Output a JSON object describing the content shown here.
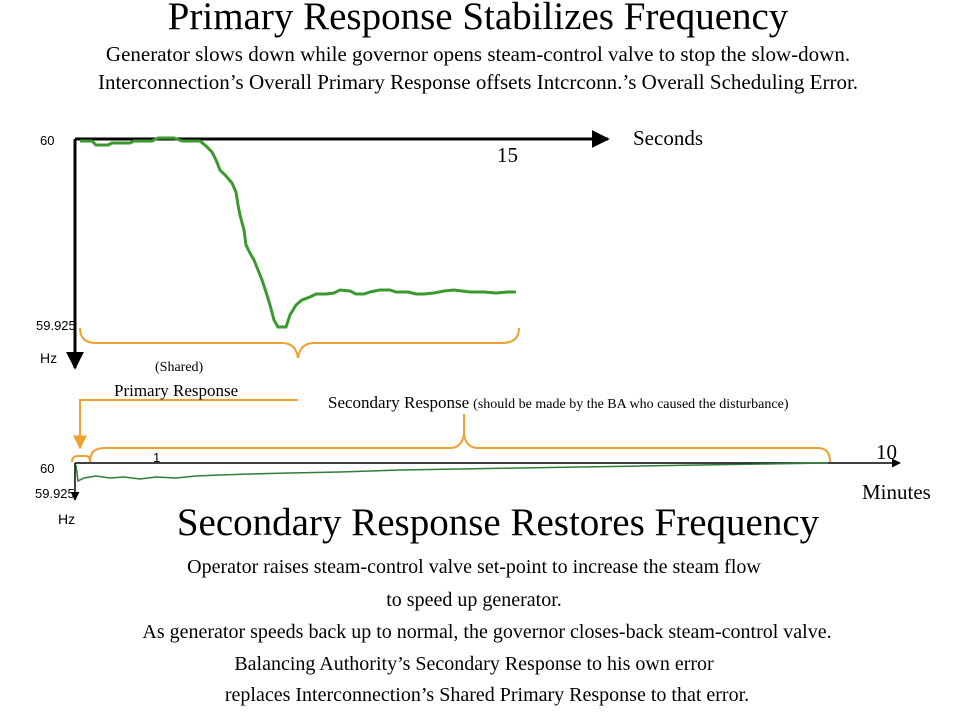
{
  "title_top": "Primary Response Stabilizes Frequency",
  "subtitle_top": [
    "Generator slows down while governor opens steam-control valve to stop the slow-down.",
    "Interconnection’s Overall Primary Response offsets Intcrconn.’s Overall Scheduling Error."
  ],
  "top_chart": {
    "y_tick_top": "60",
    "y_tick_bottom": "59.925",
    "y_unit": "Hz",
    "x_unit": "Seconds",
    "x_value_label": "15",
    "brace_label_shared": "(Shared)",
    "brace_label_primary": "Primary Response"
  },
  "secondary_brace": {
    "label_main": "Secondary Response",
    "label_note": "(should be made by the BA who caused the disturbance)"
  },
  "bottom_chart": {
    "y_tick_top": "60",
    "y_tick_bottom": "59.925",
    "y_unit": "Hz",
    "x_unit": "Minutes",
    "x_value_label": "10",
    "small_mark": "1"
  },
  "title_bottom": "Secondary Response Restores Frequency",
  "body_bottom": [
    "Operator raises steam-control valve set-point to increase the steam flow",
    "to speed up generator.",
    "As generator speeds back up to normal, the governor closes-back steam-control valve.",
    "Balancing Authority’s Secondary Response to his own error",
    "replaces Interconnection’s Shared Primary Response to that error."
  ],
  "colors": {
    "frequency_trace": "#3a9a2e",
    "brace": "#f0a030",
    "axis": "#000000"
  }
}
